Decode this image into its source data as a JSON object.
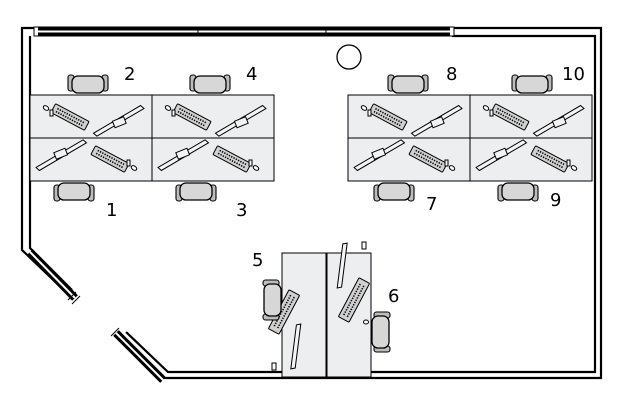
{
  "workstations": [
    {
      "number": "1"
    },
    {
      "number": "2"
    },
    {
      "number": "3"
    },
    {
      "number": "4"
    },
    {
      "number": "5"
    },
    {
      "number": "6"
    },
    {
      "number": "7"
    },
    {
      "number": "8"
    },
    {
      "number": "9"
    },
    {
      "number": "10"
    }
  ]
}
